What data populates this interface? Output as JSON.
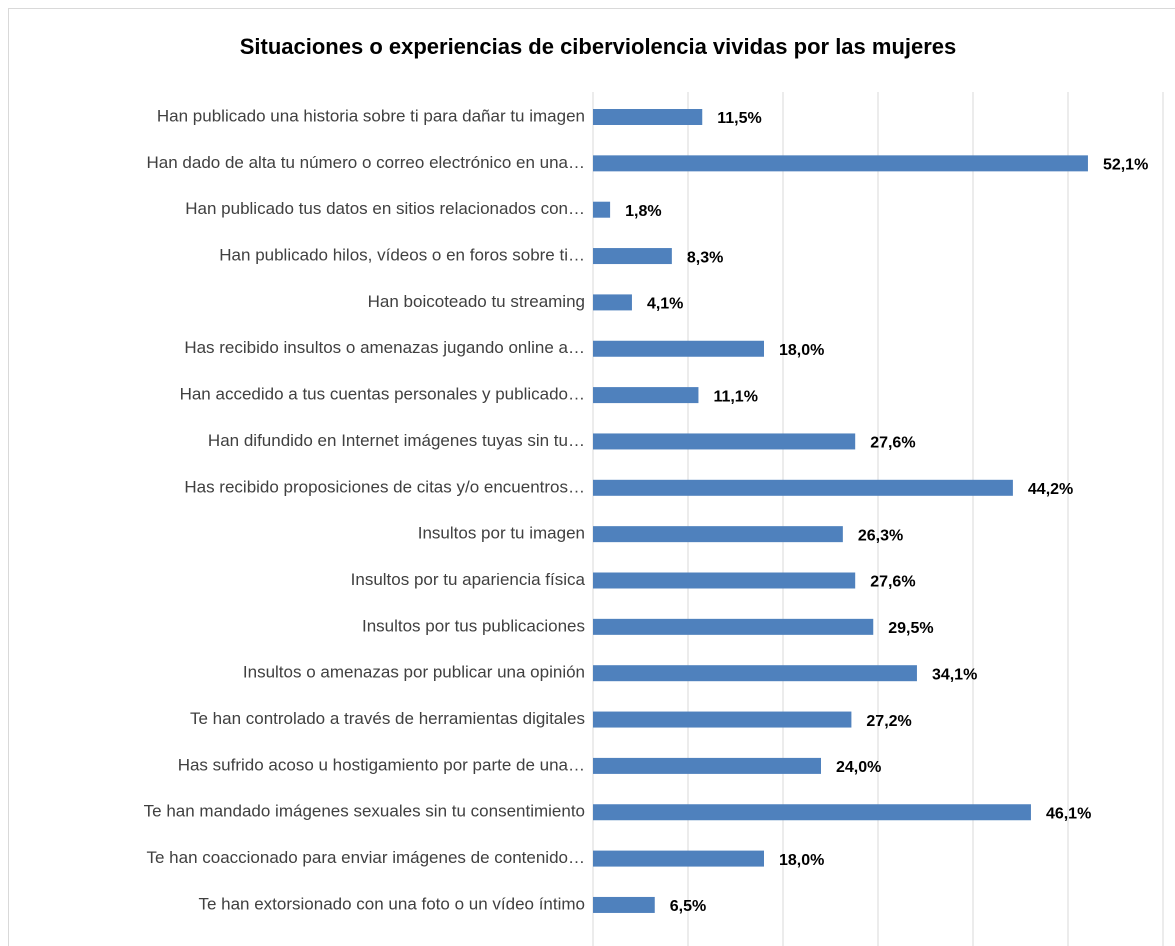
{
  "chart_data": {
    "type": "bar",
    "orientation": "horizontal",
    "title": "Situaciones o experiencias de ciberviolencia vividas por las mujeres",
    "categories": [
      "Han publicado una historia sobre ti para dañar tu imagen",
      "Han dado de alta tu número o correo electrónico en una…",
      "Han publicado tus datos en sitios relacionados con…",
      "Han publicado hilos, vídeos o en foros sobre ti…",
      "Han boicoteado tu streaming",
      "Has recibido insultos o amenazas jugando online a…",
      "Han accedido a tus cuentas personales y publicado…",
      "Han difundido en Internet imágenes tuyas sin tu…",
      "Has recibido proposiciones de citas y/o encuentros…",
      "Insultos por tu imagen",
      "Insultos por tu apariencia física",
      "Insultos por tus publicaciones",
      "Insultos o amenazas por publicar una opinión",
      "Te han controlado a través de herramientas digitales",
      "Has sufrido acoso u hostigamiento por parte de una…",
      "Te han mandado imágenes sexuales sin tu consentimiento",
      "Te han coaccionado para enviar imágenes de contenido…",
      "Te han extorsionado con una foto o un vídeo íntimo"
    ],
    "values": [
      11.5,
      52.1,
      1.8,
      8.3,
      4.1,
      18.0,
      11.1,
      27.6,
      44.2,
      26.3,
      27.6,
      29.5,
      34.1,
      27.2,
      24.0,
      46.1,
      18.0,
      6.5
    ],
    "value_labels": [
      "11,5%",
      "52,1%",
      "1,8%",
      "8,3%",
      "4,1%",
      "18,0%",
      "11,1%",
      "27,6%",
      "44,2%",
      "26,3%",
      "27,6%",
      "29,5%",
      "34,1%",
      "27,2%",
      "24,0%",
      "46,1%",
      "18,0%",
      "6,5%"
    ],
    "color": "#4f81bd",
    "xlim": [
      0,
      60
    ],
    "xticks": [
      0,
      10,
      20,
      30,
      40,
      50,
      60
    ],
    "grid": true
  }
}
